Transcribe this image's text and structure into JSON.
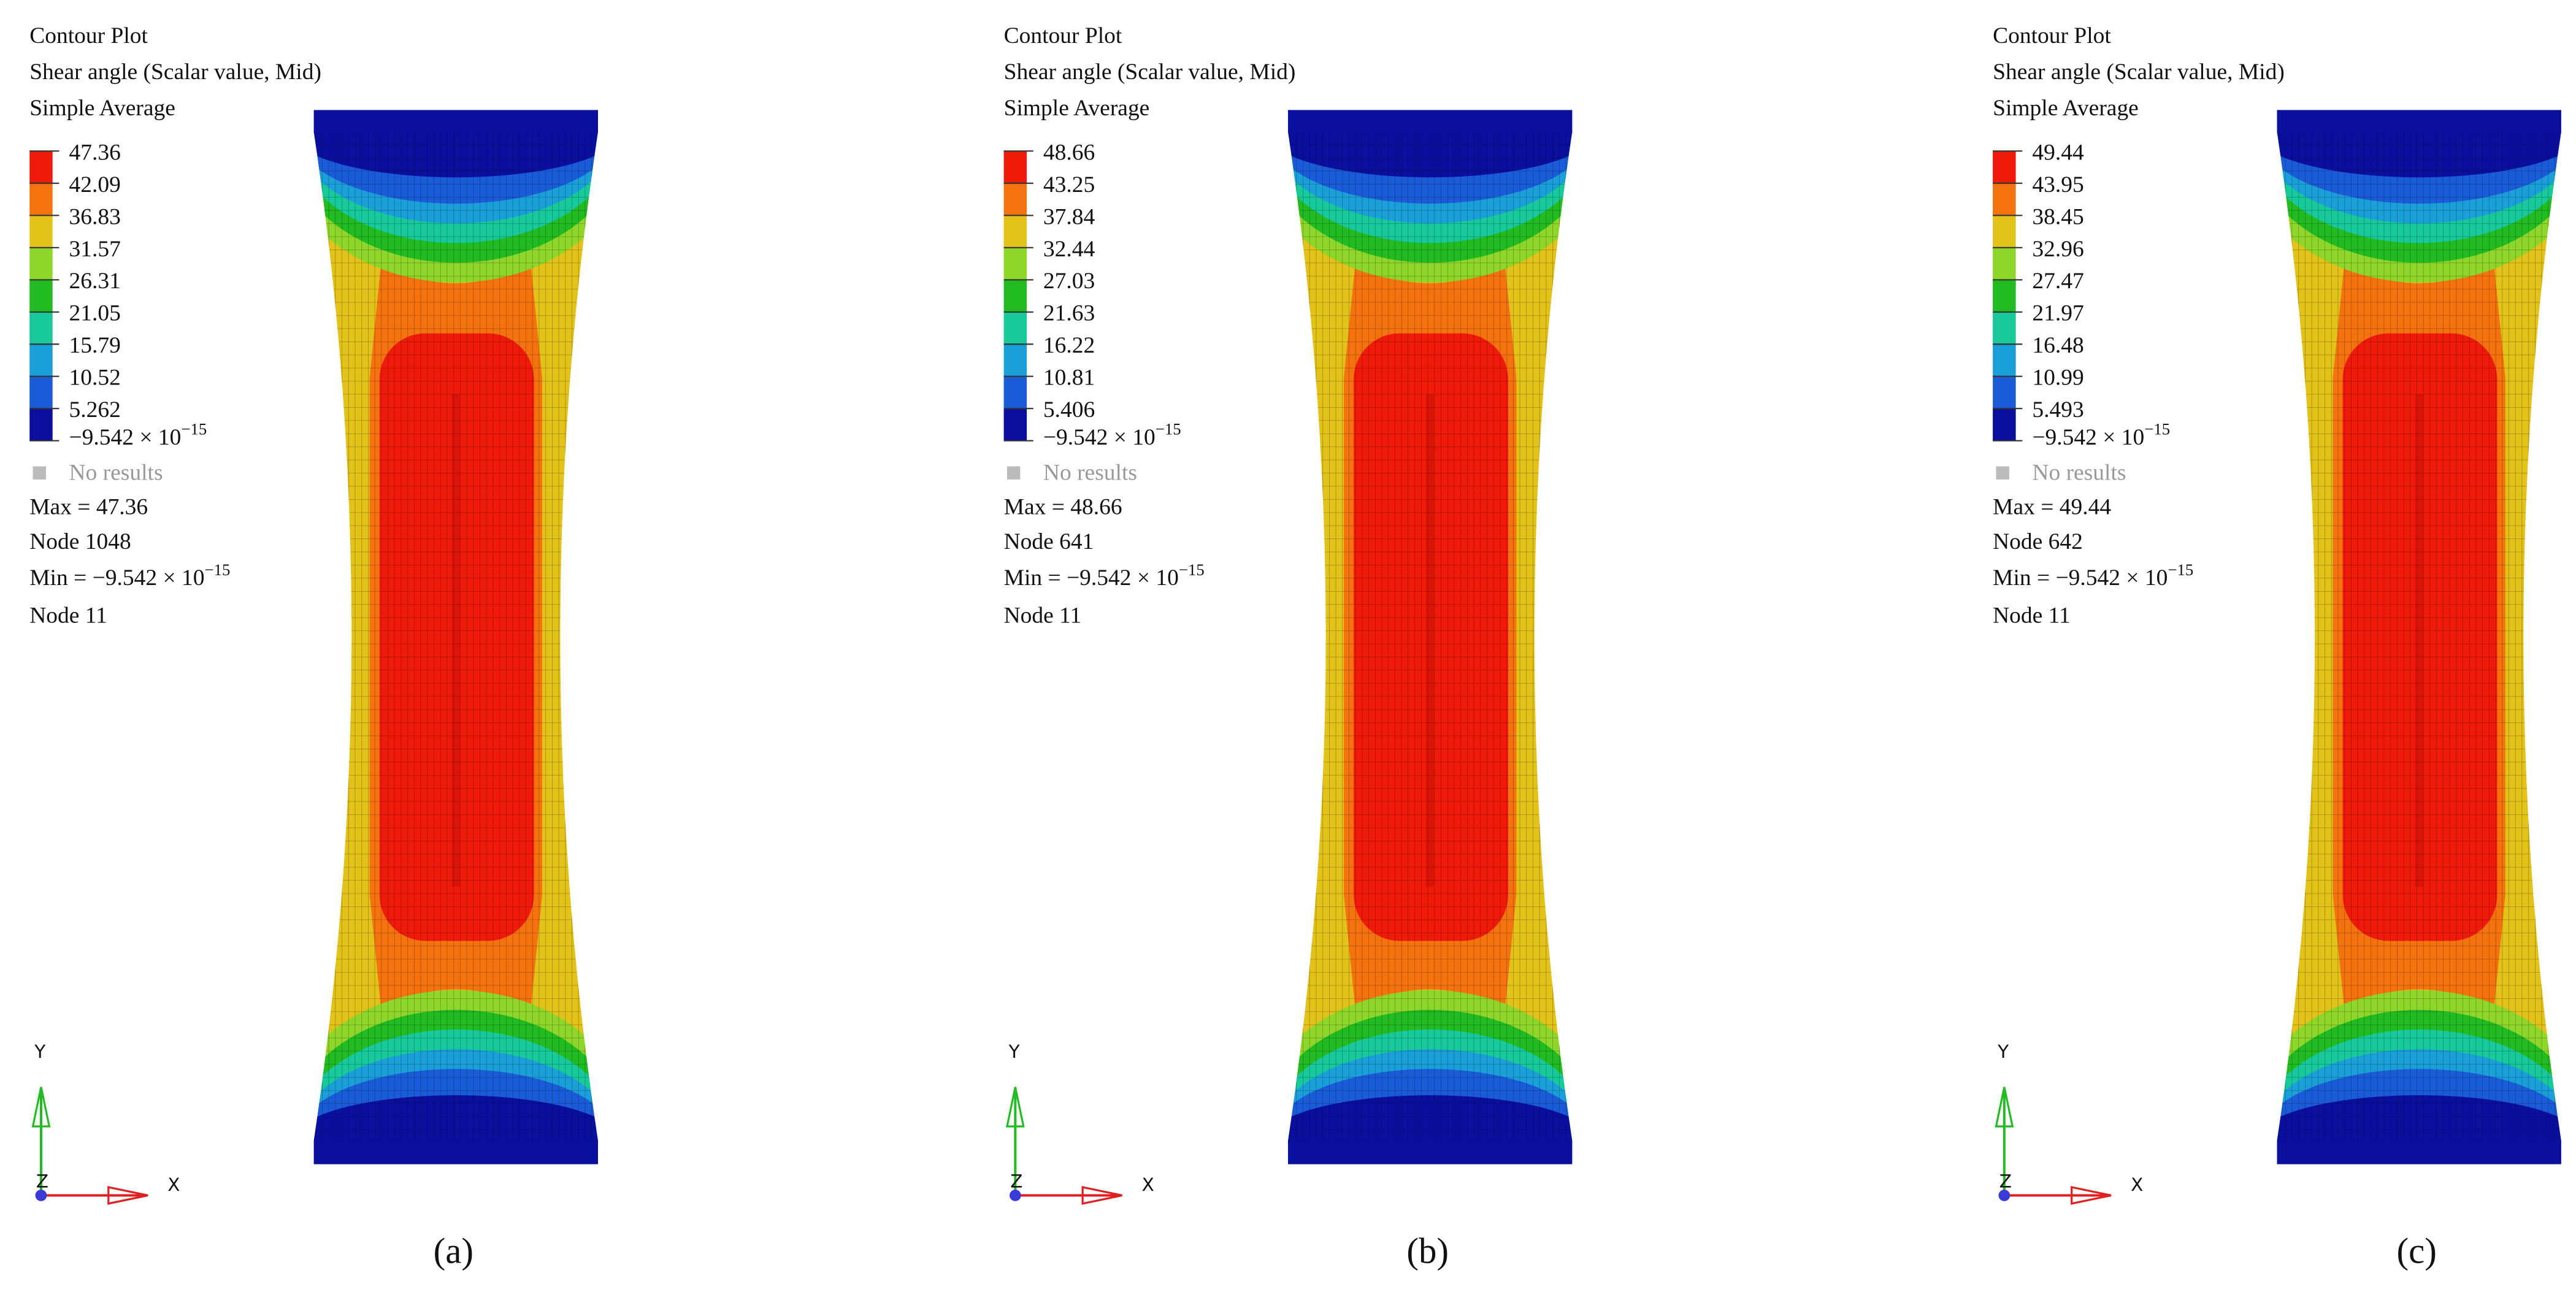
{
  "colors": [
    "#f01a0a",
    "#f5730f",
    "#e3c21a",
    "#8fd62a",
    "#22bb22",
    "#17c99b",
    "#1a9fd8",
    "#1a5cd8",
    "#0a0f9e"
  ],
  "panels": [
    {
      "label": "(a)",
      "title": "Contour Plot",
      "quantity": "Shear angle (Scalar value, Mid)",
      "averaging": "Simple Average",
      "legend_values": [
        "47.36",
        "42.09",
        "36.83",
        "31.57",
        "26.31",
        "21.05",
        "15.79",
        "10.52",
        "5.262"
      ],
      "legend_min": {
        "text": "−9.542 × 10",
        "exp": "−15"
      },
      "no_results": "No results",
      "max": "Max = 47.36",
      "max_node": "Node 1048",
      "min": {
        "text": "Min = −9.542 × 10",
        "exp": "−15"
      },
      "min_node": "Node 11",
      "axes": {
        "y": "Y",
        "x": "X",
        "z": "Z"
      }
    },
    {
      "label": "(b)",
      "title": "Contour Plot",
      "quantity": "Shear angle (Scalar value, Mid)",
      "averaging": "Simple Average",
      "legend_values": [
        "48.66",
        "43.25",
        "37.84",
        "32.44",
        "27.03",
        "21.63",
        "16.22",
        "10.81",
        "5.406"
      ],
      "legend_min": {
        "text": "−9.542 × 10",
        "exp": "−15"
      },
      "no_results": "No results",
      "max": "Max = 48.66",
      "max_node": "Node 641",
      "min": {
        "text": "Min = −9.542 × 10",
        "exp": "−15"
      },
      "min_node": "Node 11",
      "axes": {
        "y": "Y",
        "x": "X",
        "z": "Z"
      }
    },
    {
      "label": "(c)",
      "title": "Contour Plot",
      "quantity": "Shear angle (Scalar value, Mid)",
      "averaging": "Simple Average",
      "legend_values": [
        "49.44",
        "43.95",
        "38.45",
        "32.96",
        "27.47",
        "21.97",
        "16.48",
        "10.99",
        "5.493"
      ],
      "legend_min": {
        "text": "−9.542 × 10",
        "exp": "−15"
      },
      "no_results": "No results",
      "max": "Max = 49.44",
      "max_node": "Node 642",
      "min": {
        "text": "Min = −9.542 × 10",
        "exp": "−15"
      },
      "min_node": "Node 11",
      "axes": {
        "y": "Y",
        "x": "X",
        "z": "Z"
      }
    }
  ]
}
